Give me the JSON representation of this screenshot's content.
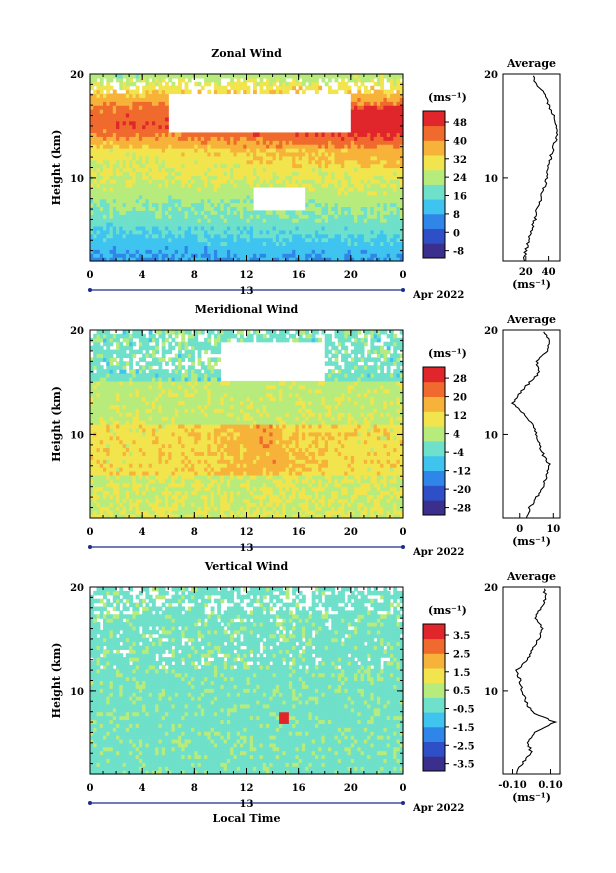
{
  "chart_data": [
    {
      "type": "heatmap",
      "title": "Zonal Wind",
      "ylabel": "Height (km)",
      "yticks": [
        "20",
        "10"
      ],
      "xticks": [
        "0",
        "4",
        "8",
        "12",
        "16",
        "20",
        "0"
      ],
      "ylim": [
        2,
        20
      ],
      "xlim": [
        0,
        24
      ],
      "date_center": "13",
      "date_label": "Apr 2022",
      "colorbar_unit": "(ms⁻¹)",
      "colorbar_ticks": [
        "48",
        "40",
        "32",
        "24",
        "16",
        "8",
        "0",
        "-8"
      ],
      "colorbar_range": [
        -12,
        52
      ],
      "profile_title": "Average",
      "profile_unit": "(ms⁻¹)",
      "profile_xticks": [
        "20",
        "40"
      ],
      "profile_xlim": [
        0,
        50
      ],
      "profile_height": [
        2,
        3,
        4,
        5,
        6,
        7,
        8,
        9,
        10,
        11,
        12,
        13,
        14,
        15,
        16,
        17,
        18,
        19,
        20
      ],
      "profile_values": [
        18,
        20,
        23,
        25,
        28,
        30,
        33,
        36,
        38,
        40,
        42,
        44,
        48,
        47,
        44,
        40,
        38,
        30,
        25
      ]
    },
    {
      "type": "heatmap",
      "title": "Meridional Wind",
      "ylabel": "Height (km)",
      "yticks": [
        "20",
        "10"
      ],
      "xticks": [
        "0",
        "4",
        "8",
        "12",
        "16",
        "20",
        "0"
      ],
      "ylim": [
        2,
        20
      ],
      "xlim": [
        0,
        24
      ],
      "date_center": "13",
      "date_label": "Apr 2022",
      "colorbar_unit": "(ms⁻¹)",
      "colorbar_ticks": [
        "28",
        "20",
        "12",
        "4",
        "-4",
        "-12",
        "-20",
        "-28"
      ],
      "colorbar_range": [
        -32,
        32
      ],
      "profile_title": "Average",
      "profile_unit": "(ms⁻¹)",
      "profile_xticks": [
        "0",
        "10"
      ],
      "profile_xlim": [
        -5,
        12
      ],
      "profile_height": [
        2,
        3,
        4,
        5,
        6,
        7,
        8,
        9,
        10,
        11,
        12,
        13,
        14,
        15,
        16,
        17,
        18,
        19,
        20
      ],
      "profile_values": [
        2,
        3,
        5,
        7,
        8,
        9,
        7,
        6,
        5,
        4,
        1,
        -2,
        0,
        3,
        6,
        5,
        8,
        9,
        7
      ]
    },
    {
      "type": "heatmap",
      "title": "Vertical Wind",
      "ylabel": "Height (km)",
      "yticks": [
        "20",
        "10"
      ],
      "xticks": [
        "0",
        "4",
        "8",
        "12",
        "16",
        "20",
        "0"
      ],
      "xlabel": "Local Time",
      "ylim": [
        2,
        20
      ],
      "xlim": [
        0,
        24
      ],
      "date_center": "13",
      "date_label": "Apr 2022",
      "colorbar_unit": "(ms⁻¹)",
      "colorbar_ticks": [
        "3.5",
        "2.5",
        "1.5",
        "0.5",
        "-0.5",
        "-1.5",
        "-2.5",
        "-3.5"
      ],
      "colorbar_range": [
        -4,
        4
      ],
      "profile_title": "Average",
      "profile_unit": "(ms⁻¹)",
      "profile_xticks": [
        "-0.10",
        "0.10"
      ],
      "profile_xlim": [
        -0.15,
        0.15
      ],
      "profile_height": [
        2,
        3,
        4,
        5,
        6,
        7,
        8,
        9,
        10,
        11,
        12,
        13,
        14,
        15,
        16,
        17,
        18,
        19,
        20
      ],
      "profile_values": [
        -0.08,
        -0.05,
        0.0,
        -0.02,
        0.02,
        0.12,
        0.0,
        -0.03,
        -0.05,
        -0.06,
        -0.08,
        -0.02,
        0.0,
        0.04,
        0.06,
        0.02,
        0.05,
        0.08,
        0.06
      ]
    }
  ]
}
